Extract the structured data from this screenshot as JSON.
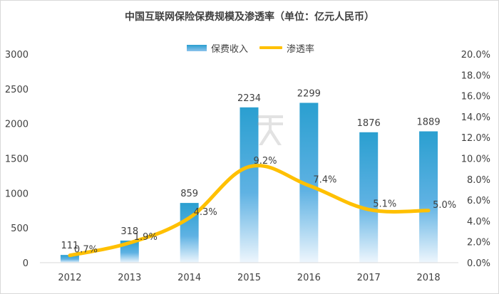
{
  "chart_data": {
    "type": "bar",
    "title": "中国互联网保险保费规模及渗透率（单位：亿元人民币）",
    "categories": [
      "2012",
      "2013",
      "2014",
      "2015",
      "2016",
      "2017",
      "2018"
    ],
    "series": [
      {
        "name": "保费收入",
        "type": "bar",
        "axis": "left",
        "values": [
          111,
          318,
          859,
          2234,
          2299,
          1876,
          1889
        ],
        "labels": [
          "111",
          "318",
          "859",
          "2234",
          "2299",
          "1876",
          "1889"
        ]
      },
      {
        "name": "渗透率",
        "type": "line",
        "axis": "right",
        "values": [
          0.7,
          1.9,
          4.3,
          9.2,
          7.4,
          5.1,
          5.0
        ],
        "labels": [
          "0.7%",
          "1.9%",
          "4.3%",
          "9.2%",
          "7.4%",
          "5.1%",
          "5.0%"
        ]
      }
    ],
    "y_left": {
      "min": 0,
      "max": 3000,
      "ticks": [
        "0",
        "500",
        "1000",
        "1500",
        "2000",
        "2500",
        "3000"
      ]
    },
    "y_right": {
      "min": 0,
      "max": 20,
      "ticks": [
        "0.0%",
        "2.0%",
        "4.0%",
        "6.0%",
        "8.0%",
        "10.0%",
        "12.0%",
        "14.0%",
        "16.0%",
        "18.0%",
        "20.0%"
      ]
    },
    "grid": false,
    "legend": "top-center"
  },
  "colors": {
    "bar_top": "#2a9fd0",
    "bar_bottom": "#eef6fd",
    "line": "#ffc000",
    "text": "#404040"
  },
  "watermark": {
    "icon": "brand-logo-icon"
  }
}
